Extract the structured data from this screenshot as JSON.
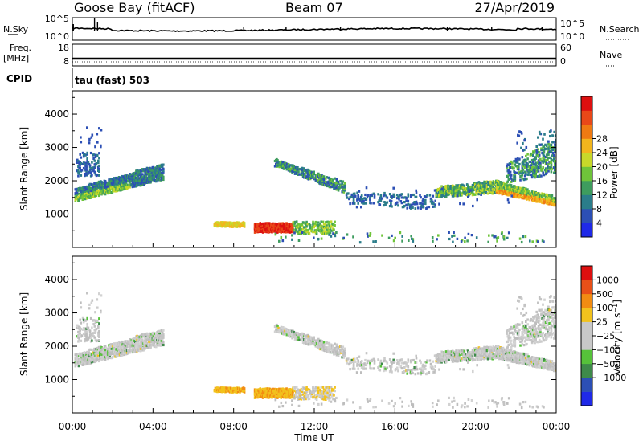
{
  "header": {
    "station": "Goose Bay (fitACF)",
    "beam": "Beam 07",
    "date": "27/Apr/2019"
  },
  "strip_labels": {
    "nsky": "N.Sky",
    "freq": "Freq.",
    "mhz": "[MHz]",
    "cpid": "CPID",
    "nsearch": "N.Search",
    "nave": "Nave",
    "nsky_ticks": [
      "10^5",
      "10^0"
    ],
    "nsearch_ticks": [
      "10^5",
      "10^0"
    ],
    "freq_ticks": [
      "18",
      "8"
    ],
    "nave_ticks": [
      "60",
      "0"
    ],
    "cpid_text": "tau (fast) 503"
  },
  "chart_data": [
    {
      "type": "heatmap",
      "name": "power",
      "ylabel": "Slant Range [km]",
      "xlabel": "",
      "ylim": [
        0,
        4700
      ],
      "yticks": [
        "1000",
        "2000",
        "3000",
        "4000"
      ],
      "xticks": [
        "00:00",
        "04:00",
        "08:00",
        "12:00",
        "16:00",
        "20:00",
        "00:00"
      ],
      "colorbar": {
        "label": "Power [dB]",
        "ticks": [
          "4",
          "8",
          "12",
          "16",
          "20",
          "24",
          "28"
        ],
        "colors": [
          "#1f29e8",
          "#2c4fb5",
          "#2b7d8a",
          "#3e9c5e",
          "#6fc43a",
          "#c8d82a",
          "#f2b51d",
          "#ef7a12",
          "#e84818",
          "#dd1010"
        ]
      },
      "echo_regions": [
        {
          "t_start": 0.1,
          "t_end": 4.5,
          "range_start": 1400,
          "range_end": 2500,
          "power_db": "8-20"
        },
        {
          "t_start": 0.2,
          "t_end": 1.2,
          "range_start": 2200,
          "range_end": 2900,
          "power_db": "4-12"
        },
        {
          "t_start": 7.0,
          "t_end": 8.5,
          "range_start": 650,
          "range_end": 750,
          "power_db": "16-20"
        },
        {
          "t_start": 9.0,
          "t_end": 11.0,
          "range_start": 480,
          "range_end": 720,
          "power_db": "24-30"
        },
        {
          "t_start": 11.0,
          "t_end": 13.0,
          "range_start": 450,
          "range_end": 720,
          "power_db": "8-16"
        },
        {
          "t_start": 10.0,
          "t_end": 13.5,
          "range_start": 1800,
          "range_end": 2600,
          "power_db": "4-16"
        },
        {
          "t_start": 13.5,
          "t_end": 18.0,
          "range_start": 1200,
          "range_end": 1900,
          "power_db": "4-12"
        },
        {
          "t_start": 18.0,
          "t_end": 21.0,
          "range_start": 1500,
          "range_end": 2000,
          "power_db": "8-16"
        },
        {
          "t_start": 21.0,
          "t_end": 24.0,
          "range_start": 1200,
          "range_end": 1800,
          "power_db": "12-24"
        },
        {
          "t_start": 21.5,
          "t_end": 24.0,
          "range_start": 2000,
          "range_end": 3300,
          "power_db": "4-16"
        }
      ]
    },
    {
      "type": "heatmap",
      "name": "velocity",
      "ylabel": "Slant Range [km]",
      "xlabel": "Time UT",
      "ylim": [
        0,
        4700
      ],
      "yticks": [
        "1000",
        "2000",
        "3000",
        "4000"
      ],
      "xticks": [
        "00:00",
        "04:00",
        "08:00",
        "12:00",
        "16:00",
        "20:00",
        "00:00"
      ],
      "colorbar": {
        "label": "Velocity [m s^-1]",
        "ticks": [
          "1000",
          "500",
          "100",
          "25",
          "−25",
          "−100",
          "−500",
          "−1000"
        ],
        "colors": [
          "#1f29e8",
          "#2c4fb5",
          "#3e8a4a",
          "#56c23a",
          "#c8c8c8",
          "#c8c8c8",
          "#f2c21d",
          "#f28c12",
          "#e85018",
          "#dd1010"
        ]
      }
    }
  ]
}
